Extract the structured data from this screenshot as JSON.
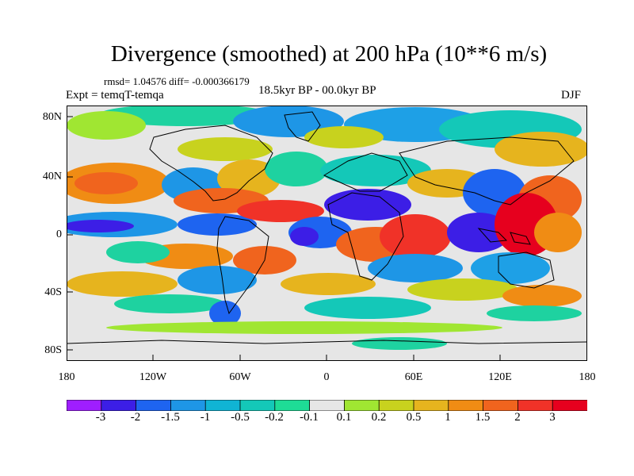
{
  "title": "Divergence (smoothed) at 200 hPa (10**6 m/s)",
  "stats_text": "rmsd= 1.04576 diff= -0.000366179",
  "experiment": "Expt = temqT-temqa",
  "period": "18.5kyr BP - 00.0kyr BP",
  "season": "DJF",
  "lat_labels": [
    "80N",
    "40N",
    "0",
    "40S",
    "80S"
  ],
  "lon_labels": [
    "180",
    "120W",
    "60W",
    "0",
    "60E",
    "120E",
    "180"
  ],
  "colorbar": {
    "labels": [
      "-3",
      "-2",
      "-1.5",
      "-1",
      "-0.5",
      "-0.2",
      "-0.1",
      "0.1",
      "0.2",
      "0.5",
      "1",
      "1.5",
      "2",
      "3"
    ],
    "colors": [
      "#9f1eff",
      "#3c1ee6",
      "#1e64f0",
      "#1e96e6",
      "#10b4d4",
      "#14c8b8",
      "#1edc96",
      "#e6e6e6",
      "#a0e632",
      "#c8d21e",
      "#e6b41e",
      "#f08c14",
      "#f0641e",
      "#f03228",
      "#e6001e"
    ]
  },
  "palette": {
    "coast": "#000000",
    "neutral": "#e6e6e6",
    "border": "#000000"
  }
}
